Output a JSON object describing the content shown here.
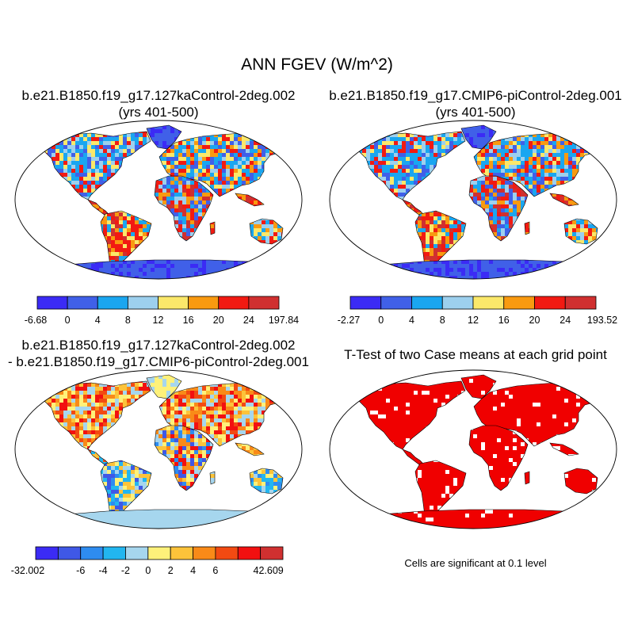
{
  "figure": {
    "title": "ANN FGEV (W/m^2)"
  },
  "panels": {
    "p1": {
      "title_line1": "b.e21.B1850.f19_g17.127kaControl-2deg.002",
      "title_line2": "(yrs 401-500)",
      "colorbar": {
        "colors": [
          "#3b2bf5",
          "#4060e8",
          "#1aa6f0",
          "#9dd0ee",
          "#fbe86a",
          "#f99a10",
          "#f21a12",
          "#d03030"
        ],
        "labels": [
          "-6.68",
          "0",
          "4",
          "8",
          "12",
          "16",
          "20",
          "24",
          "197.84"
        ]
      }
    },
    "p2": {
      "title_line1": "b.e21.B1850.f19_g17.CMIP6-piControl-2deg.001",
      "title_line2": "(yrs 401-500)",
      "colorbar": {
        "colors": [
          "#3b2bf5",
          "#4060e8",
          "#1aa6f0",
          "#9dd0ee",
          "#fbe86a",
          "#f99a10",
          "#f21a12",
          "#d03030"
        ],
        "labels": [
          "-2.27",
          "0",
          "4",
          "8",
          "12",
          "16",
          "20",
          "24",
          "193.52"
        ]
      }
    },
    "p3": {
      "title_line1": "b.e21.B1850.f19_g17.127kaControl-2deg.002",
      "title_line2": "- b.e21.B1850.f19_g17.CMIP6-piControl-2deg.001",
      "colorbar": {
        "colors": [
          "#3b2bf5",
          "#3f58e6",
          "#2e8cf0",
          "#22b6f0",
          "#a6d6ee",
          "#fef17a",
          "#fcc33a",
          "#f98a18",
          "#f24a12",
          "#f21010",
          "#d03030"
        ],
        "labels": [
          "-32.002",
          "",
          "-6",
          "-4",
          "-2",
          "0",
          "2",
          "4",
          "6",
          "",
          "42.609"
        ]
      }
    },
    "p4": {
      "title": "T-Test of two Case means at each grid point",
      "note": "Cells are significant at 0.1 level",
      "fill_color": "#f00000"
    }
  }
}
